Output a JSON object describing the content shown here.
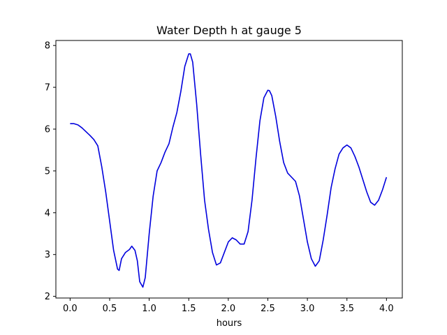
{
  "chart_data": {
    "type": "line",
    "title": "Water Depth h at gauge 5",
    "xlabel": "hours",
    "ylabel": "",
    "xlim": [
      -0.18,
      4.2
    ],
    "ylim": [
      1.96,
      8.12
    ],
    "xticks": [
      0.0,
      0.5,
      1.0,
      1.5,
      2.0,
      2.5,
      3.0,
      3.5,
      4.0
    ],
    "xtick_labels": [
      "0.0",
      "0.5",
      "1.0",
      "1.5",
      "2.0",
      "2.5",
      "3.0",
      "3.5",
      "4.0"
    ],
    "yticks": [
      2,
      3,
      4,
      5,
      6,
      7,
      8
    ],
    "ytick_labels": [
      "2",
      "3",
      "4",
      "5",
      "6",
      "7",
      "8"
    ],
    "grid": false,
    "series": [
      {
        "color": "#0000dd",
        "x": [
          0.0,
          0.05,
          0.1,
          0.15,
          0.2,
          0.25,
          0.3,
          0.35,
          0.4,
          0.45,
          0.5,
          0.55,
          0.6,
          0.62,
          0.65,
          0.7,
          0.75,
          0.78,
          0.82,
          0.85,
          0.88,
          0.92,
          0.95,
          1.0,
          1.05,
          1.1,
          1.15,
          1.2,
          1.25,
          1.3,
          1.35,
          1.4,
          1.45,
          1.5,
          1.52,
          1.55,
          1.6,
          1.65,
          1.7,
          1.75,
          1.8,
          1.85,
          1.9,
          1.95,
          2.0,
          2.05,
          2.1,
          2.15,
          2.2,
          2.25,
          2.3,
          2.35,
          2.4,
          2.45,
          2.5,
          2.52,
          2.55,
          2.6,
          2.65,
          2.7,
          2.75,
          2.8,
          2.85,
          2.9,
          2.95,
          3.0,
          3.05,
          3.1,
          3.15,
          3.2,
          3.25,
          3.3,
          3.35,
          3.4,
          3.45,
          3.5,
          3.55,
          3.6,
          3.65,
          3.7,
          3.75,
          3.8,
          3.85,
          3.9,
          3.95,
          4.0
        ],
        "y": [
          6.13,
          6.13,
          6.1,
          6.03,
          5.94,
          5.85,
          5.75,
          5.6,
          5.1,
          4.5,
          3.8,
          3.1,
          2.65,
          2.62,
          2.9,
          3.05,
          3.12,
          3.2,
          3.1,
          2.85,
          2.35,
          2.22,
          2.45,
          3.5,
          4.4,
          5.0,
          5.2,
          5.45,
          5.65,
          6.05,
          6.4,
          6.9,
          7.5,
          7.8,
          7.8,
          7.6,
          6.6,
          5.4,
          4.3,
          3.6,
          3.05,
          2.75,
          2.8,
          3.05,
          3.3,
          3.4,
          3.35,
          3.25,
          3.25,
          3.55,
          4.3,
          5.3,
          6.2,
          6.75,
          6.93,
          6.92,
          6.8,
          6.3,
          5.7,
          5.2,
          4.95,
          4.85,
          4.75,
          4.4,
          3.85,
          3.3,
          2.9,
          2.72,
          2.85,
          3.35,
          3.95,
          4.6,
          5.05,
          5.4,
          5.55,
          5.62,
          5.55,
          5.35,
          5.1,
          4.8,
          4.5,
          4.25,
          4.18,
          4.3,
          4.55,
          4.85
        ]
      }
    ]
  }
}
